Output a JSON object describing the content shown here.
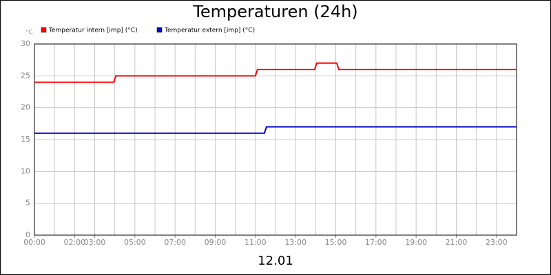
{
  "chart_data": {
    "type": "line",
    "title": "Temperaturen (24h)",
    "ylabel": "°C",
    "xlabel": "12.01",
    "xlim": [
      0,
      24
    ],
    "ylim": [
      0,
      30
    ],
    "yticks": [
      0,
      5,
      10,
      15,
      20,
      25,
      30
    ],
    "xticks": [
      {
        "value": 0,
        "label": "00:00"
      },
      {
        "value": 2,
        "label": "02:00"
      },
      {
        "value": 3,
        "label": "03:00"
      },
      {
        "value": 5,
        "label": "05:00"
      },
      {
        "value": 7,
        "label": "07:00"
      },
      {
        "value": 9,
        "label": "09:00"
      },
      {
        "value": 11,
        "label": "11:00"
      },
      {
        "value": 13,
        "label": "13:00"
      },
      {
        "value": 15,
        "label": "15:00"
      },
      {
        "value": 17,
        "label": "17:00"
      },
      {
        "value": 19,
        "label": "19:00"
      },
      {
        "value": 21,
        "label": "21:00"
      },
      {
        "value": 23,
        "label": "23:00"
      }
    ],
    "x_minor_grid": 1,
    "grid": true,
    "series": [
      {
        "name": "Temperatur intern [imp] (°C)",
        "color": "#ff0000",
        "x": [
          0,
          3.95,
          4.05,
          11.0,
          11.1,
          13.95,
          14.05,
          15.05,
          15.15,
          24
        ],
        "values": [
          24,
          24,
          25,
          25,
          26,
          26,
          27,
          27,
          26,
          26
        ]
      },
      {
        "name": "Temperatur extern [imp] (°C)",
        "color": "#0000cc",
        "x": [
          0,
          11.45,
          11.55,
          24
        ],
        "values": [
          16,
          16,
          17,
          17
        ]
      }
    ]
  }
}
